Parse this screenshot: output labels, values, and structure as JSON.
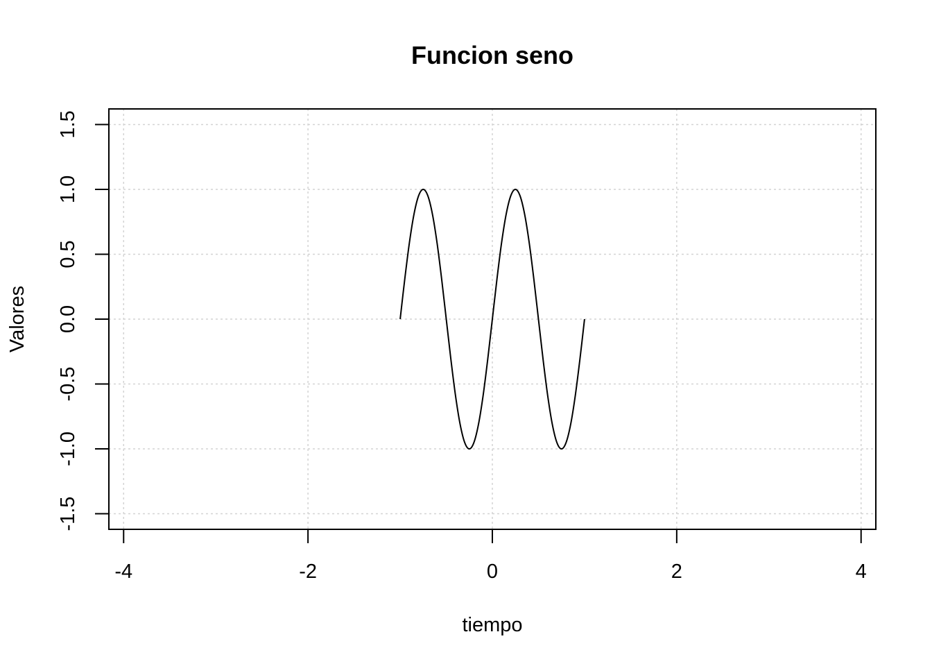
{
  "chart_data": {
    "type": "line",
    "title": "Funcion seno",
    "xlabel": "tiempo",
    "ylabel": "Valores",
    "xlim": [
      -4.16,
      4.16
    ],
    "ylim": [
      -1.62,
      1.62
    ],
    "xticks": [
      -4,
      -2,
      0,
      2,
      4
    ],
    "xtick_labels": [
      "-4",
      "-2",
      "0",
      "2",
      "4"
    ],
    "yticks": [
      -1.5,
      -1.0,
      -0.5,
      0.0,
      0.5,
      1.0,
      1.5
    ],
    "ytick_labels": [
      "-1.5",
      "-1.0",
      "-0.5",
      "0.0",
      "0.5",
      "1.0",
      "1.5"
    ],
    "grid": true,
    "line_color": "#000000",
    "grid_color": "#d3d3d3",
    "series": [
      {
        "x": [
          -1.0,
          -0.95,
          -0.9,
          -0.85,
          -0.8,
          -0.75,
          -0.7,
          -0.65,
          -0.6,
          -0.55,
          -0.5,
          -0.45,
          -0.4,
          -0.35,
          -0.3,
          -0.25,
          -0.2,
          -0.15,
          -0.1,
          -0.05,
          0.0,
          0.05,
          0.1,
          0.15,
          0.2,
          0.25,
          0.3,
          0.35,
          0.4,
          0.45,
          0.5,
          0.55,
          0.6,
          0.65,
          0.7,
          0.75,
          0.8,
          0.85,
          0.9,
          0.95,
          1.0
        ],
        "y": [
          0.0,
          0.309,
          0.588,
          0.809,
          0.951,
          1.0,
          0.951,
          0.809,
          0.588,
          0.309,
          0.0,
          -0.309,
          -0.588,
          -0.809,
          -0.951,
          -1.0,
          -0.951,
          -0.809,
          -0.588,
          -0.309,
          0.0,
          0.309,
          0.588,
          0.809,
          0.951,
          1.0,
          0.951,
          0.809,
          0.588,
          0.309,
          0.0,
          -0.309,
          -0.588,
          -0.809,
          -0.951,
          -1.0,
          -0.951,
          -0.809,
          -0.588,
          -0.309,
          0.0
        ]
      }
    ]
  }
}
